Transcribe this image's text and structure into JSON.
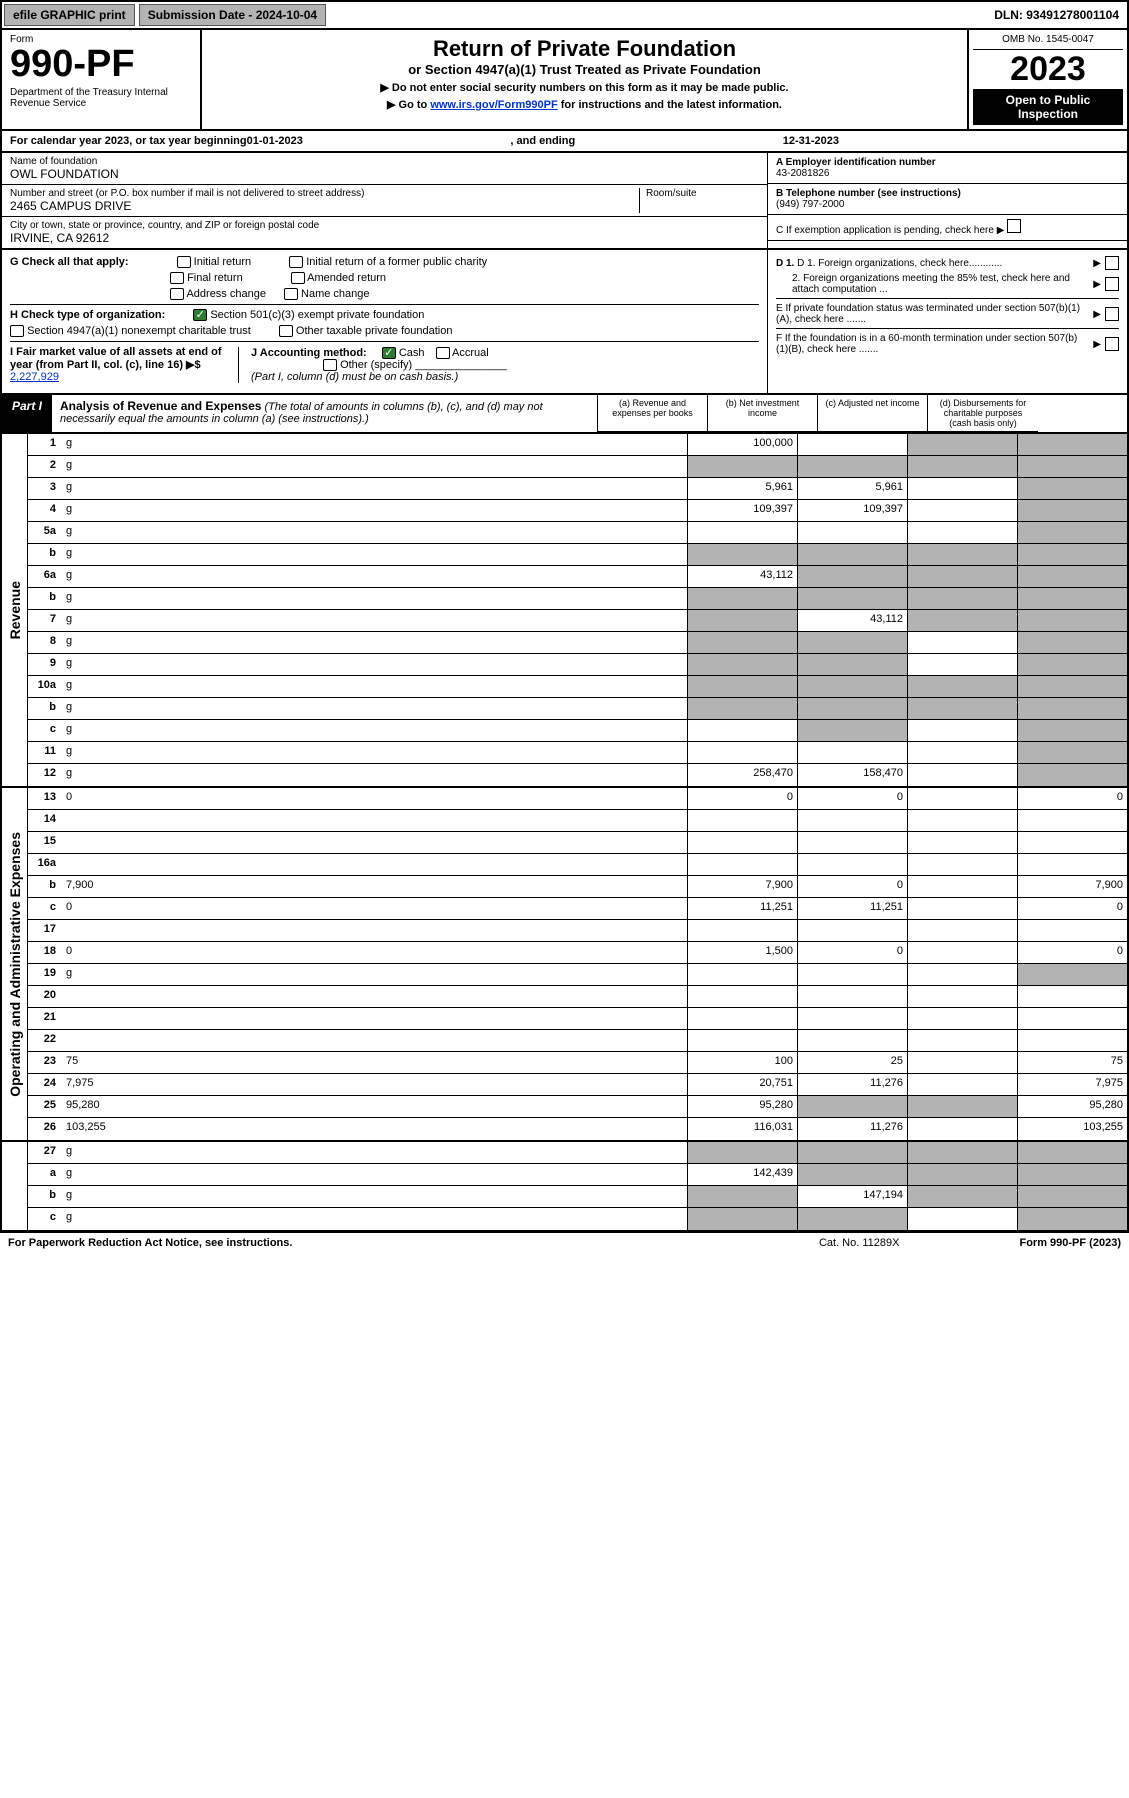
{
  "toolbar": {
    "efile": "efile GRAPHIC print",
    "subdate_label": "Submission Date - 2024-10-04",
    "dln": "DLN: 93491278001104"
  },
  "header": {
    "form_word": "Form",
    "form_num": "990-PF",
    "dept": "Department of the Treasury\nInternal Revenue Service",
    "title": "Return of Private Foundation",
    "subtitle": "or Section 4947(a)(1) Trust Treated as Private Foundation",
    "note1": "▶ Do not enter social security numbers on this form as it may be made public.",
    "note2_pre": "▶ Go to ",
    "note2_link": "www.irs.gov/Form990PF",
    "note2_post": " for instructions and the latest information.",
    "omb": "OMB No. 1545-0047",
    "year": "2023",
    "open": "Open to Public Inspection"
  },
  "calyear": {
    "pre": "For calendar year 2023, or tax year beginning ",
    "begin": "01-01-2023",
    "mid": ", and ending ",
    "end": "12-31-2023"
  },
  "id": {
    "name_lbl": "Name of foundation",
    "name": "OWL FOUNDATION",
    "addr_lbl": "Number and street (or P.O. box number if mail is not delivered to street address)",
    "addr": "2465 CAMPUS DRIVE",
    "room_lbl": "Room/suite",
    "city_lbl": "City or town, state or province, country, and ZIP or foreign postal code",
    "city": "IRVINE, CA  92612",
    "a_lbl": "A Employer identification number",
    "a_val": "43-2081826",
    "b_lbl": "B Telephone number (see instructions)",
    "b_val": "(949) 797-2000",
    "c_lbl": "C If exemption application is pending, check here"
  },
  "checks": {
    "g_lbl": "G Check all that apply:",
    "g_opts": [
      "Initial return",
      "Initial return of a former public charity",
      "Final return",
      "Amended return",
      "Address change",
      "Name change"
    ],
    "h_lbl": "H Check type of organization:",
    "h_opt1": "Section 501(c)(3) exempt private foundation",
    "h_opt2": "Section 4947(a)(1) nonexempt charitable trust",
    "h_opt3": "Other taxable private foundation",
    "i_lbl": "I Fair market value of all assets at end of year (from Part II, col. (c), line 16) ▶$ ",
    "i_val": "2,227,929",
    "j_lbl": "J Accounting method:",
    "j_opt1": "Cash",
    "j_opt2": "Accrual",
    "j_opt3": "Other (specify)",
    "j_note": "(Part I, column (d) must be on cash basis.)",
    "d1": "D 1. Foreign organizations, check here............",
    "d2": "2. Foreign organizations meeting the 85% test, check here and attach computation ...",
    "e": "E  If private foundation status was terminated under section 507(b)(1)(A), check here .......",
    "f": "F  If the foundation is in a 60-month termination under section 507(b)(1)(B), check here .......",
    "arrow": "▶"
  },
  "part1": {
    "tag": "Part I",
    "title": "Analysis of Revenue and Expenses",
    "note": " (The total of amounts in columns (b), (c), and (d) may not necessarily equal the amounts in column (a) (see instructions).)",
    "cols": {
      "a": "(a)   Revenue and expenses per books",
      "b": "(b)   Net investment income",
      "c": "(c)   Adjusted net income",
      "d": "(d)   Disbursements for charitable purposes (cash basis only)"
    }
  },
  "side": {
    "rev": "Revenue",
    "exp": "Operating and Administrative Expenses"
  },
  "rows": [
    {
      "n": "1",
      "d": "g",
      "a": "100,000",
      "b": "",
      "c": "g"
    },
    {
      "n": "2",
      "d": "g",
      "a": "g",
      "b": "g",
      "c": "g"
    },
    {
      "n": "3",
      "d": "g",
      "a": "5,961",
      "b": "5,961",
      "c": ""
    },
    {
      "n": "4",
      "d": "g",
      "a": "109,397",
      "b": "109,397",
      "c": ""
    },
    {
      "n": "5a",
      "d": "g",
      "a": "",
      "b": "",
      "c": ""
    },
    {
      "n": "b",
      "d": "g",
      "a": "g",
      "b": "g",
      "c": "g"
    },
    {
      "n": "6a",
      "d": "g",
      "a": "43,112",
      "b": "g",
      "c": "g"
    },
    {
      "n": "b",
      "d": "g",
      "a": "g",
      "b": "g",
      "c": "g"
    },
    {
      "n": "7",
      "d": "g",
      "a": "g",
      "b": "43,112",
      "c": "g"
    },
    {
      "n": "8",
      "d": "g",
      "a": "g",
      "b": "g",
      "c": ""
    },
    {
      "n": "9",
      "d": "g",
      "a": "g",
      "b": "g",
      "c": ""
    },
    {
      "n": "10a",
      "d": "g",
      "a": "g",
      "b": "g",
      "c": "g"
    },
    {
      "n": "b",
      "d": "g",
      "a": "g",
      "b": "g",
      "c": "g"
    },
    {
      "n": "c",
      "d": "g",
      "a": "",
      "b": "g",
      "c": ""
    },
    {
      "n": "11",
      "d": "g",
      "a": "",
      "b": "",
      "c": ""
    },
    {
      "n": "12",
      "d": "g",
      "a": "258,470",
      "b": "158,470",
      "c": ""
    }
  ],
  "rows2": [
    {
      "n": "13",
      "d": "0",
      "a": "0",
      "b": "0",
      "c": ""
    },
    {
      "n": "14",
      "d": "",
      "a": "",
      "b": "",
      "c": ""
    },
    {
      "n": "15",
      "d": "",
      "a": "",
      "b": "",
      "c": ""
    },
    {
      "n": "16a",
      "d": "",
      "a": "",
      "b": "",
      "c": ""
    },
    {
      "n": "b",
      "d": "7,900",
      "a": "7,900",
      "b": "0",
      "c": ""
    },
    {
      "n": "c",
      "d": "0",
      "a": "11,251",
      "b": "11,251",
      "c": ""
    },
    {
      "n": "17",
      "d": "",
      "a": "",
      "b": "",
      "c": ""
    },
    {
      "n": "18",
      "d": "0",
      "a": "1,500",
      "b": "0",
      "c": ""
    },
    {
      "n": "19",
      "d": "g",
      "a": "",
      "b": "",
      "c": ""
    },
    {
      "n": "20",
      "d": "",
      "a": "",
      "b": "",
      "c": ""
    },
    {
      "n": "21",
      "d": "",
      "a": "",
      "b": "",
      "c": ""
    },
    {
      "n": "22",
      "d": "",
      "a": "",
      "b": "",
      "c": ""
    },
    {
      "n": "23",
      "d": "75",
      "a": "100",
      "b": "25",
      "c": ""
    },
    {
      "n": "24",
      "d": "7,975",
      "a": "20,751",
      "b": "11,276",
      "c": ""
    },
    {
      "n": "25",
      "d": "95,280",
      "a": "95,280",
      "b": "g",
      "c": "g"
    },
    {
      "n": "26",
      "d": "103,255",
      "a": "116,031",
      "b": "11,276",
      "c": ""
    }
  ],
  "rows3": [
    {
      "n": "27",
      "d": "g",
      "a": "g",
      "b": "g",
      "c": "g"
    },
    {
      "n": "a",
      "d": "g",
      "a": "142,439",
      "b": "g",
      "c": "g"
    },
    {
      "n": "b",
      "d": "g",
      "a": "g",
      "b": "147,194",
      "c": "g"
    },
    {
      "n": "c",
      "d": "g",
      "a": "g",
      "b": "g",
      "c": ""
    }
  ],
  "footer": {
    "pra": "For Paperwork Reduction Act Notice, see instructions.",
    "cat": "Cat. No. 11289X",
    "form": "Form 990-PF (2023)"
  }
}
